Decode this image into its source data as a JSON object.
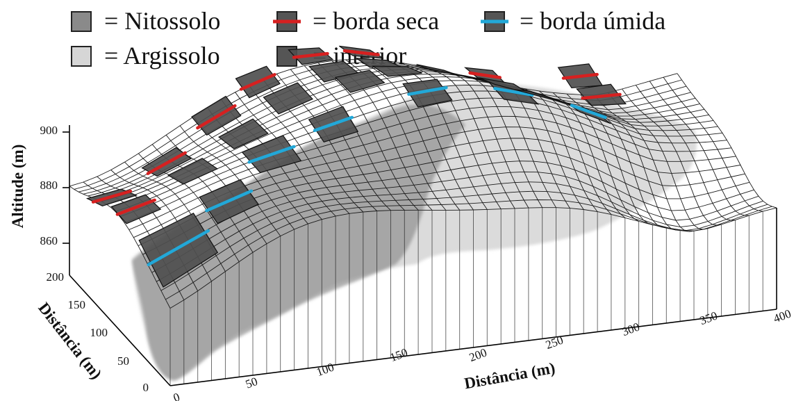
{
  "legend": {
    "items": [
      {
        "label": "= Nitossolo",
        "swatch": "#8a8a8a",
        "line": ""
      },
      {
        "label": "= borda seca",
        "swatch": "#555555",
        "line": "#d62020"
      },
      {
        "label": "= borda úmida",
        "swatch": "#555555",
        "line": "#22a8d8"
      },
      {
        "label": "= Argissolo",
        "swatch": "#d6d6d6",
        "line": ""
      },
      {
        "label": "= interior",
        "swatch": "#555555",
        "line": ""
      }
    ]
  },
  "axes": {
    "altitude": {
      "title": "Altitude (m)",
      "ticks": [
        "900",
        "880",
        "860"
      ]
    },
    "distance_depth": {
      "title": "Distância (m)",
      "ticks": [
        "200",
        "150",
        "100",
        "50",
        "0"
      ]
    },
    "distance_length": {
      "title": "Distância (m)",
      "ticks": [
        "0",
        "50",
        "100",
        "150",
        "200",
        "250",
        "300",
        "350",
        "400"
      ]
    }
  },
  "colors": {
    "nitossolo": "#8f8f8f",
    "argissolo": "#cfcfcf",
    "plot": "#4f4f4f",
    "borda_seca": "#d62020",
    "borda_umida": "#22a8d8"
  }
}
